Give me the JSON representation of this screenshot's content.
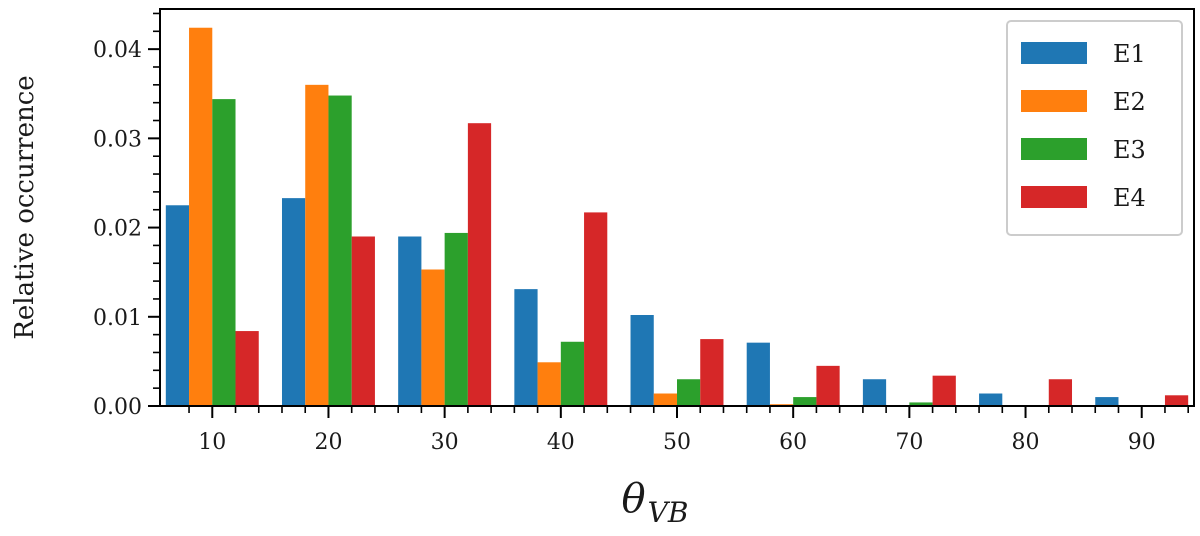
{
  "chart_data": {
    "type": "bar",
    "title": "",
    "xlabel": "θ",
    "xlabel_subscript": "VB",
    "ylabel": "Relative occurrence",
    "categories": [
      10,
      20,
      30,
      40,
      50,
      60,
      70,
      80,
      90
    ],
    "xlim": [
      5.5,
      94.5
    ],
    "ylim": [
      0,
      0.0445
    ],
    "xticks": [
      "10",
      "20",
      "30",
      "40",
      "50",
      "60",
      "70",
      "80",
      "90"
    ],
    "yticks": [
      "0.00",
      "0.01",
      "0.02",
      "0.03",
      "0.04"
    ],
    "ytick_values": [
      0,
      0.01,
      0.02,
      0.03,
      0.04
    ],
    "grid": false,
    "legend_position": "top-right",
    "series": [
      {
        "name": "E1",
        "color": "#1f77b4",
        "values": [
          0.0225,
          0.0233,
          0.019,
          0.0131,
          0.0102,
          0.0071,
          0.003,
          0.0014,
          0.001
        ]
      },
      {
        "name": "E2",
        "color": "#ff7f0e",
        "values": [
          0.0424,
          0.036,
          0.0153,
          0.0049,
          0.0014,
          0.0002,
          0.0,
          0.0,
          0.0
        ]
      },
      {
        "name": "E3",
        "color": "#2ca02c",
        "values": [
          0.0344,
          0.0348,
          0.0194,
          0.0072,
          0.003,
          0.001,
          0.0004,
          0.0,
          0.0
        ]
      },
      {
        "name": "E4",
        "color": "#d62728",
        "values": [
          0.0084,
          0.019,
          0.0317,
          0.0217,
          0.0075,
          0.0045,
          0.0034,
          0.003,
          0.0012
        ]
      }
    ]
  }
}
